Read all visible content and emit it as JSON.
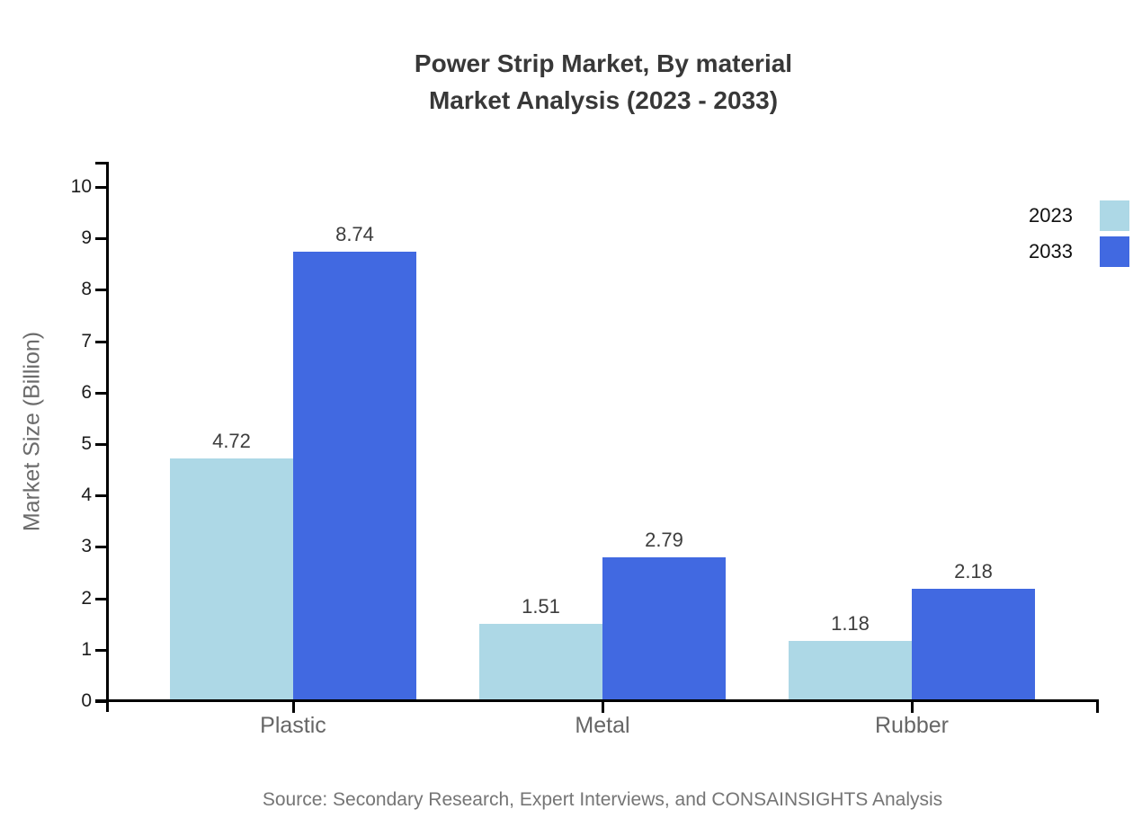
{
  "chart_data": {
    "type": "bar",
    "title_line1": "Power Strip Market, By material",
    "title_line2": "Market Analysis (2023 - 2033)",
    "categories": [
      "Plastic",
      "Metal",
      "Rubber"
    ],
    "series": [
      {
        "name": "2023",
        "color": "#ADD8E6",
        "values": [
          4.72,
          1.51,
          1.18
        ]
      },
      {
        "name": "2033",
        "color": "#4169E1",
        "values": [
          8.74,
          2.79,
          2.18
        ]
      }
    ],
    "xlabel": "",
    "ylabel": "Market Size (Billion)",
    "ylim": [
      0,
      10
    ],
    "yticks": [
      0,
      1,
      2,
      3,
      4,
      5,
      6,
      7,
      8,
      9,
      10
    ],
    "grid": false,
    "value_labels": true,
    "legend_position": "top-right",
    "source": "Source: Secondary Research, Expert Interviews, and CONSAINSIGHTS Analysis"
  },
  "colors": {
    "series_2023": "#ADD8E6",
    "series_2033": "#4169E1",
    "title_text": "#383838",
    "axis_line": "#000000",
    "tick_label": "#1c1c1c",
    "category_label": "#666666",
    "value_label": "#3d3d3d",
    "source_text": "#757575",
    "background": "#ffffff"
  }
}
